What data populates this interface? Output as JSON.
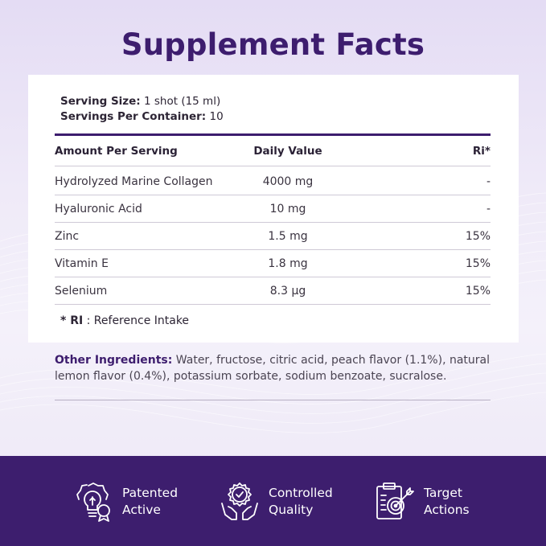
{
  "title": "Supplement Facts",
  "serving": {
    "size_label": "Serving Size:",
    "size_value": "1 shot (15 ml)",
    "per_container_label": "Servings Per Container:",
    "per_container_value": "10"
  },
  "table": {
    "headers": [
      "Amount Per Serving",
      "Daily Value",
      "Ri*"
    ],
    "rows": [
      [
        "Hydrolyzed Marine Collagen",
        "4000 mg",
        "-"
      ],
      [
        "Hyaluronic Acid",
        "10 mg",
        "-"
      ],
      [
        "Zinc",
        "1.5 mg",
        "15%"
      ],
      [
        "Vitamin E",
        "1.8 mg",
        "15%"
      ],
      [
        "Selenium",
        "8.3 µg",
        "15%"
      ]
    ]
  },
  "footnote": {
    "key": "* RI",
    "text": ": Reference Intake"
  },
  "other_ingredients": {
    "label": "Other Ingredients:",
    "text": "Water, fructose, citric acid, peach flavor (1.1%), natural lemon flavor (0.4%), potassium sorbate, sodium benzoate, sucralose."
  },
  "features": [
    {
      "label": "Patented\nActive",
      "icon": "lightbulb-badge-icon"
    },
    {
      "label": "Controlled\nQuality",
      "icon": "hands-quality-badge-icon"
    },
    {
      "label": "Target\nActions",
      "icon": "clipboard-target-icon"
    }
  ],
  "colors": {
    "primary": "#3d1d6e",
    "band": "#3d1e6e",
    "background": "#efeaf8"
  }
}
